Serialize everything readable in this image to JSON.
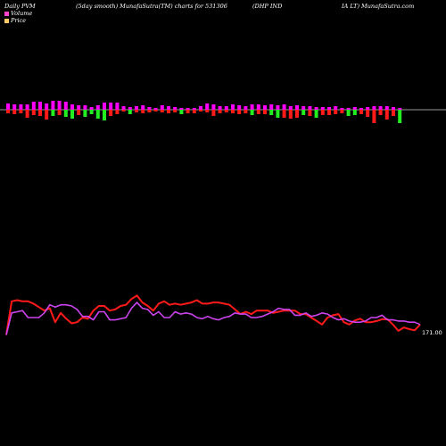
{
  "header": {
    "left": "Daily PVM",
    "mid": "(5day smooth) MunafaSutra(TM) charts for 531306",
    "right1": "(DHP IND",
    "right2": "IA LT) MunafaSutra.com"
  },
  "legend": {
    "volume_label": "Volume",
    "price_label": "Price",
    "volume_color": "#ff44cc",
    "price_color": "#ffcc66"
  },
  "chart_data": [
    {
      "type": "bar",
      "title": "Volume",
      "colors": {
        "up": "#ff00ff",
        "down_red": "#ff1a1a",
        "down_green": "#22ee22",
        "axis": "#cccccc"
      },
      "bars": [
        {
          "up": 7,
          "down": 4,
          "color": "red"
        },
        {
          "up": 6,
          "down": 5,
          "color": "red"
        },
        {
          "up": 6,
          "down": 4,
          "color": "red"
        },
        {
          "up": 6,
          "down": 9,
          "color": "red"
        },
        {
          "up": 9,
          "down": 6,
          "color": "red"
        },
        {
          "up": 9,
          "down": 7,
          "color": "red"
        },
        {
          "up": 7,
          "down": 11,
          "color": "red"
        },
        {
          "up": 10,
          "down": 7,
          "color": "green"
        },
        {
          "up": 10,
          "down": 6,
          "color": "red"
        },
        {
          "up": 9,
          "down": 8,
          "color": "green"
        },
        {
          "up": 6,
          "down": 10,
          "color": "green"
        },
        {
          "up": 5,
          "down": 6,
          "color": "red"
        },
        {
          "up": 5,
          "down": 8,
          "color": "green"
        },
        {
          "up": 3,
          "down": 5,
          "color": "green"
        },
        {
          "up": 5,
          "down": 10,
          "color": "green"
        },
        {
          "up": 8,
          "down": 12,
          "color": "green"
        },
        {
          "up": 8,
          "down": 7,
          "color": "red"
        },
        {
          "up": 8,
          "down": 5,
          "color": "red"
        },
        {
          "up": 4,
          "down": 2,
          "color": "red"
        },
        {
          "up": 3,
          "down": 5,
          "color": "green"
        },
        {
          "up": 4,
          "down": 3,
          "color": "red"
        },
        {
          "up": 5,
          "down": 4,
          "color": "red"
        },
        {
          "up": 3,
          "down": 3,
          "color": "red"
        },
        {
          "up": 2,
          "down": 2,
          "color": "red"
        },
        {
          "up": 5,
          "down": 3,
          "color": "red"
        },
        {
          "up": 4,
          "down": 4,
          "color": "red"
        },
        {
          "up": 3,
          "down": 3,
          "color": "red"
        },
        {
          "up": 2,
          "down": 5,
          "color": "green"
        },
        {
          "up": 2,
          "down": 4,
          "color": "red"
        },
        {
          "up": 2,
          "down": 4,
          "color": "red"
        },
        {
          "up": 4,
          "down": 2,
          "color": "red"
        },
        {
          "up": 7,
          "down": 3,
          "color": "red"
        },
        {
          "up": 6,
          "down": 7,
          "color": "red"
        },
        {
          "up": 4,
          "down": 4,
          "color": "red"
        },
        {
          "up": 4,
          "down": 3,
          "color": "red"
        },
        {
          "up": 6,
          "down": 4,
          "color": "red"
        },
        {
          "up": 5,
          "down": 5,
          "color": "red"
        },
        {
          "up": 4,
          "down": 4,
          "color": "red"
        },
        {
          "up": 6,
          "down": 6,
          "color": "green"
        },
        {
          "up": 6,
          "down": 5,
          "color": "red"
        },
        {
          "up": 5,
          "down": 5,
          "color": "red"
        },
        {
          "up": 6,
          "down": 6,
          "color": "green"
        },
        {
          "up": 5,
          "down": 9,
          "color": "green"
        },
        {
          "up": 6,
          "down": 9,
          "color": "red"
        },
        {
          "up": 4,
          "down": 10,
          "color": "red"
        },
        {
          "up": 5,
          "down": 9,
          "color": "red"
        },
        {
          "up": 4,
          "down": 6,
          "color": "green"
        },
        {
          "up": 4,
          "down": 7,
          "color": "red"
        },
        {
          "up": 3,
          "down": 9,
          "color": "green"
        },
        {
          "up": 3,
          "down": 6,
          "color": "red"
        },
        {
          "up": 3,
          "down": 6,
          "color": "red"
        },
        {
          "up": 4,
          "down": 5,
          "color": "red"
        },
        {
          "up": 2,
          "down": 4,
          "color": "red"
        },
        {
          "up": 2,
          "down": 7,
          "color": "green"
        },
        {
          "up": 3,
          "down": 6,
          "color": "green"
        },
        {
          "up": 2,
          "down": 5,
          "color": "red"
        },
        {
          "up": 3,
          "down": 8,
          "color": "red"
        },
        {
          "up": 4,
          "down": 15,
          "color": "red"
        },
        {
          "up": 4,
          "down": 6,
          "color": "red"
        },
        {
          "up": 4,
          "down": 11,
          "color": "red"
        },
        {
          "up": 3,
          "down": 7,
          "color": "red"
        },
        {
          "up": 2,
          "down": 15,
          "color": "green"
        }
      ]
    },
    {
      "type": "line",
      "title": "Price",
      "end_label": "171.00",
      "ylim": [
        0,
        100
      ],
      "series": [
        {
          "color": "#ff1a1a",
          "values": [
            30,
            88,
            90,
            88,
            88,
            84,
            78,
            72,
            76,
            52,
            68,
            58,
            50,
            52,
            60,
            58,
            72,
            80,
            80,
            72,
            74,
            80,
            82,
            92,
            98,
            86,
            80,
            72,
            84,
            88,
            82,
            84,
            82,
            84,
            86,
            90,
            84,
            84,
            86,
            86,
            84,
            82,
            74,
            66,
            70,
            66,
            72,
            72,
            72,
            68,
            70,
            72,
            72,
            72,
            66,
            66,
            60,
            54,
            48,
            60,
            64,
            66,
            52,
            48,
            55,
            58,
            52,
            52,
            54,
            57,
            57,
            48,
            37,
            43,
            40,
            38,
            48
          ]
        },
        {
          "color": "#cc44ee",
          "values": [
            30,
            68,
            70,
            72,
            60,
            60,
            60,
            68,
            82,
            78,
            82,
            82,
            80,
            74,
            62,
            62,
            56,
            70,
            70,
            56,
            56,
            58,
            60,
            76,
            86,
            76,
            74,
            64,
            70,
            60,
            60,
            70,
            66,
            68,
            66,
            60,
            58,
            62,
            58,
            56,
            60,
            62,
            68,
            66,
            66,
            60,
            60,
            62,
            66,
            70,
            76,
            74,
            74,
            64,
            64,
            68,
            62,
            64,
            68,
            66,
            60,
            56,
            58,
            54,
            52,
            52,
            54,
            60,
            60,
            64,
            56,
            56,
            54,
            54,
            52,
            52,
            48
          ]
        }
      ]
    }
  ]
}
